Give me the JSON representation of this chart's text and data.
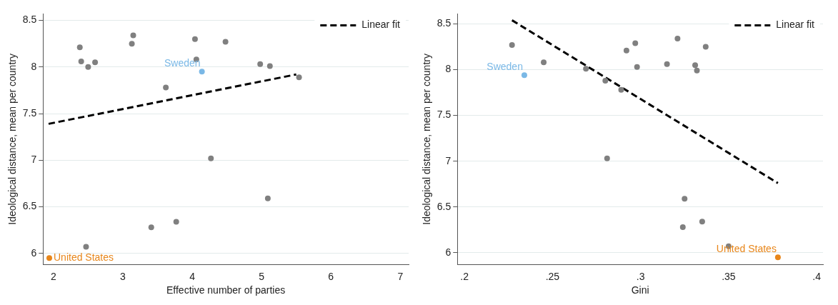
{
  "chart_data": [
    {
      "type": "scatter",
      "xlabel": "Effective number of parties",
      "ylabel": "Ideological distance, mean per country",
      "xlim": [
        1.85,
        7.12
      ],
      "ylim": [
        5.88,
        8.57
      ],
      "xticks": [
        2,
        3,
        4,
        5,
        6,
        7
      ],
      "yticks": [
        6,
        6.5,
        7,
        7.5,
        8,
        8.5
      ],
      "grid": "y",
      "legend": "top right",
      "marker": "circle",
      "series": [
        {
          "color": "#808080",
          "x": [
            2.38,
            2.4,
            2.5,
            2.6,
            3.13,
            3.15,
            4.04,
            4.06,
            4.48,
            4.98,
            5.12,
            5.54,
            3.62,
            4.27,
            5.09,
            3.41,
            3.77,
            2.47
          ],
          "values": [
            8.21,
            8.06,
            8.0,
            8.05,
            8.25,
            8.34,
            8.3,
            8.08,
            8.27,
            8.03,
            8.01,
            7.89,
            7.78,
            7.02,
            6.59,
            6.28,
            6.34,
            6.07
          ]
        },
        {
          "name": "Sweden",
          "color": "#7ab8e6",
          "x": [
            4.14
          ],
          "values": [
            7.95
          ]
        },
        {
          "name": "United States",
          "color": "#e8861a",
          "x": [
            1.94
          ],
          "values": [
            5.95
          ]
        },
        {
          "type": "line",
          "name": "Linear fit",
          "color": "#000000",
          "line_style": "dashed",
          "marker": "none",
          "x": [
            1.93,
            5.5
          ],
          "values": [
            7.39,
            7.92
          ]
        }
      ]
    },
    {
      "type": "scatter",
      "xlabel": "Gini",
      "ylabel": "Ideological distance, mean per country",
      "xlim": [
        0.196,
        0.4036
      ],
      "ylim": [
        5.87,
        8.61
      ],
      "xticks": [
        {
          "value": 0.2,
          "label": ".2"
        },
        {
          "value": 0.25,
          "label": ".25"
        },
        {
          "value": 0.3,
          "label": ".3"
        },
        {
          "value": 0.35,
          "label": ".35"
        },
        {
          "value": 0.4,
          "label": ".4"
        }
      ],
      "yticks": [
        6,
        6.5,
        7,
        7.5,
        8,
        8.5
      ],
      "grid": "y",
      "legend": "top right",
      "marker": "circle",
      "series": [
        {
          "color": "#808080",
          "x": [
            0.227,
            0.245,
            0.269,
            0.28,
            0.289,
            0.281,
            0.292,
            0.297,
            0.298,
            0.315,
            0.321,
            0.331,
            0.332,
            0.337,
            0.325,
            0.324,
            0.335,
            0.35
          ],
          "values": [
            8.27,
            8.08,
            8.01,
            7.88,
            7.78,
            7.03,
            8.21,
            8.29,
            8.03,
            8.06,
            8.34,
            8.05,
            7.99,
            8.25,
            6.59,
            6.28,
            6.34,
            6.07
          ]
        },
        {
          "name": "Sweden",
          "color": "#7ab8e6",
          "x": [
            0.234
          ],
          "values": [
            7.94
          ]
        },
        {
          "name": "United States",
          "color": "#e8861a",
          "x": [
            0.378
          ],
          "values": [
            5.95
          ]
        },
        {
          "type": "line",
          "name": "Linear fit",
          "color": "#000000",
          "line_style": "dashed",
          "marker": "none",
          "x": [
            0.227,
            0.378
          ],
          "values": [
            8.54,
            6.76
          ]
        }
      ]
    }
  ]
}
